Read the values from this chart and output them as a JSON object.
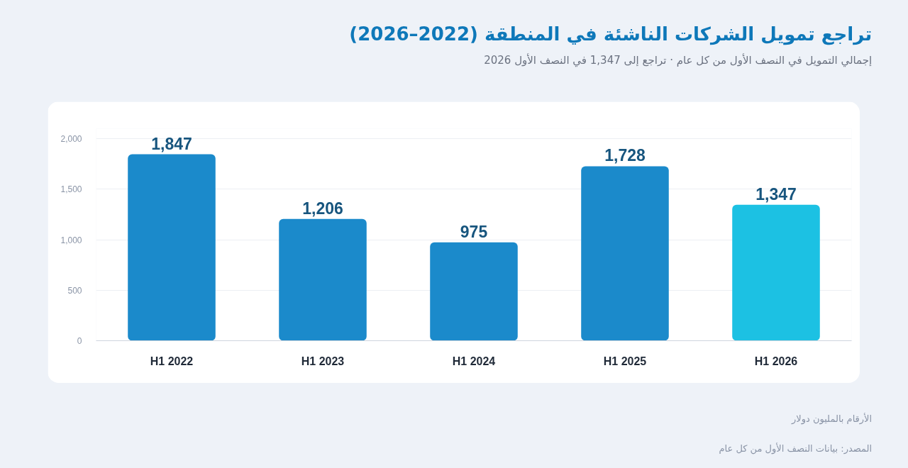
{
  "chart_data": {
    "type": "bar",
    "title": "تراجع تمويل الشركات الناشئة في المنطقة (2022–2026)",
    "subtitle": "إجمالي التمويل في النصف الأول من كل عام · تراجع إلى 1,347 في النصف الأول 2026",
    "categories": [
      "H1 2022",
      "H1 2023",
      "H1 2024",
      "H1 2025",
      "H1 2026"
    ],
    "values": [
      1847,
      1206,
      975,
      1728,
      1347
    ],
    "value_labels": [
      "1,847",
      "1,206",
      "975",
      "1,728",
      "1,347"
    ],
    "colors": [
      "#1b8acb",
      "#1b8acb",
      "#1b8acb",
      "#1b8acb",
      "#1cc1e3"
    ],
    "ylim": [
      0,
      2100
    ],
    "yticks": [
      0,
      500,
      {
        "value": 1000,
        "label": "1,000"
      },
      {
        "value": 1500,
        "label": "1,500"
      },
      {
        "value": 2000,
        "label": "2,000"
      }
    ],
    "grid": "y",
    "annotations": [
      "الأرقام بالمليون دولار",
      "المصدر: بيانات النصف الأول من كل عام"
    ]
  }
}
